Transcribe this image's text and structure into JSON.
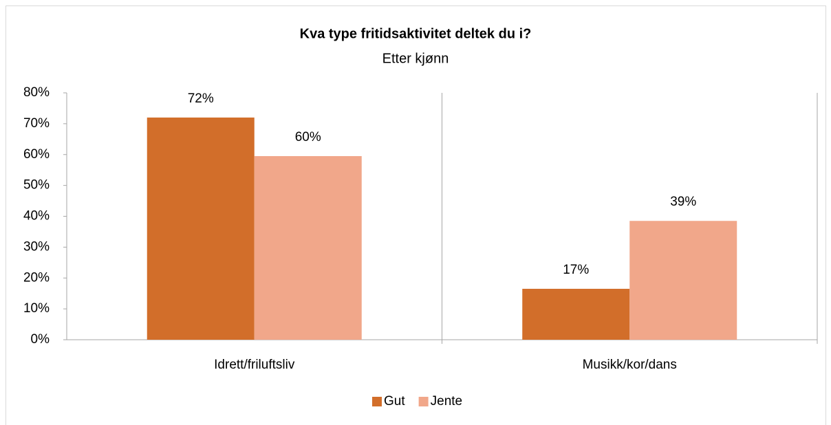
{
  "chart_data": {
    "type": "bar",
    "title": "Kva type fritidsaktivitet deltek du i?",
    "subtitle": "Etter kjønn",
    "categories": [
      "Idrett/friluftsliv",
      "Musikk/kor/dans"
    ],
    "series": [
      {
        "name": "Gut",
        "color": "#d26e2a",
        "values": [
          72,
          16.5
        ],
        "value_labels": [
          "72%",
          "17%"
        ]
      },
      {
        "name": "Jente",
        "color": "#f1a78a",
        "values": [
          59.5,
          38.5
        ],
        "value_labels": [
          "60%",
          "39%"
        ]
      }
    ],
    "ylim": [
      0,
      80
    ],
    "yticks": [
      {
        "value": 0,
        "label": "0%"
      },
      {
        "value": 10,
        "label": "10%"
      },
      {
        "value": 20,
        "label": "20%"
      },
      {
        "value": 30,
        "label": "30%"
      },
      {
        "value": 40,
        "label": "40%"
      },
      {
        "value": 50,
        "label": "50%"
      },
      {
        "value": 60,
        "label": "60%"
      },
      {
        "value": 70,
        "label": "70%"
      },
      {
        "value": 80,
        "label": "80%"
      }
    ],
    "grid": false,
    "legend": "bottom"
  }
}
